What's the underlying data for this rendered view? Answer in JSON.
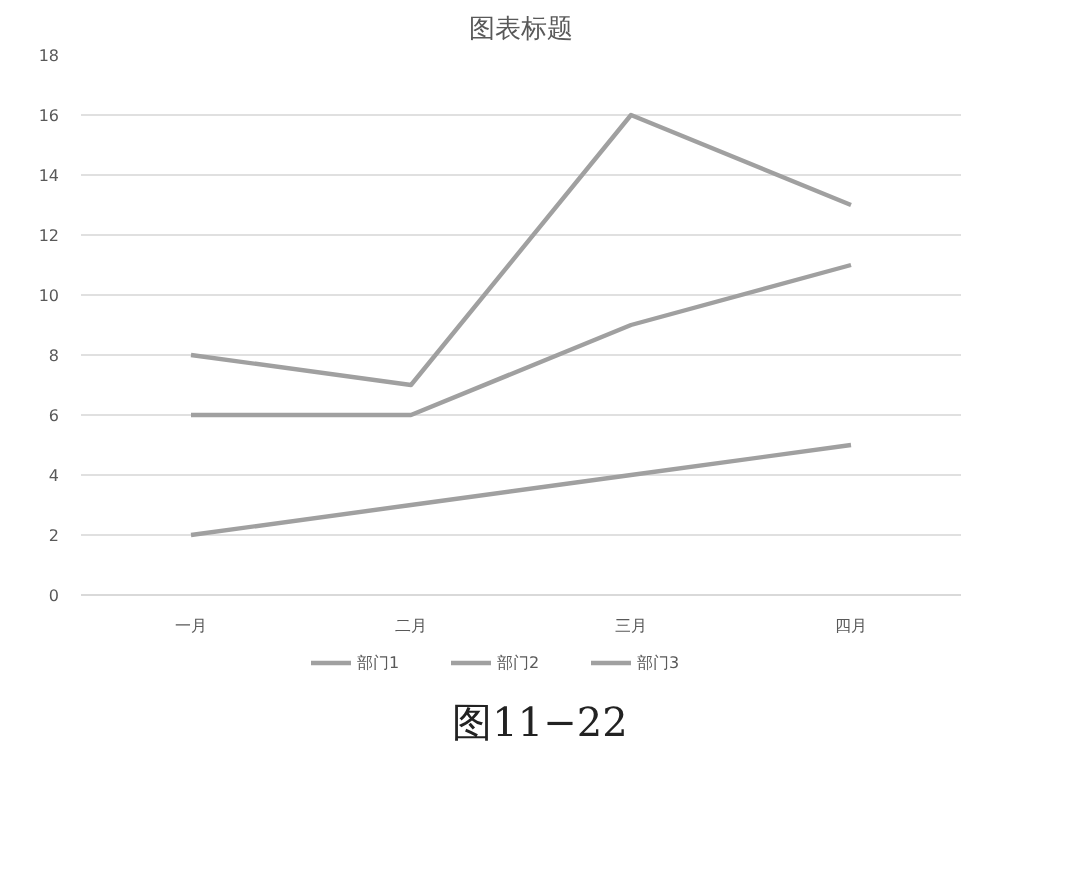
{
  "chart_data": {
    "type": "line",
    "title": "图表标题",
    "categories": [
      "一月",
      "二月",
      "三月",
      "四月"
    ],
    "series": [
      {
        "name": "部门1",
        "color": "#a0a0a0",
        "values": [
          2,
          3,
          4,
          5
        ]
      },
      {
        "name": "部门2",
        "color": "#a0a0a0",
        "values": [
          6,
          6,
          9,
          11
        ]
      },
      {
        "name": "部门3",
        "color": "#a0a0a0",
        "values": [
          8,
          7,
          16,
          13
        ]
      }
    ],
    "ylim": [
      0,
      18
    ],
    "yticks": [
      0,
      2,
      4,
      6,
      8,
      10,
      12,
      14,
      16,
      18
    ],
    "grid": "y",
    "legend": "bottom",
    "marker": "none",
    "line_style": "solid",
    "annotations": [
      "图11−22"
    ]
  }
}
